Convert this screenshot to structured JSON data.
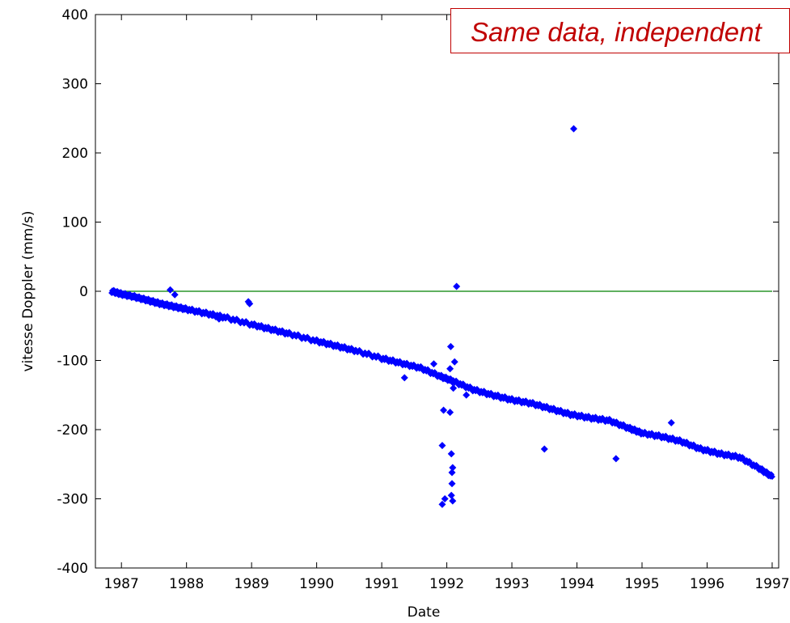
{
  "chart_data": {
    "type": "scatter",
    "title": "",
    "xlabel": "Date",
    "ylabel": "vitesse Doppler (mm/s)",
    "xlim": [
      1986.6,
      1997.1
    ],
    "ylim": [
      -400,
      400
    ],
    "xticks": [
      "1987",
      "1988",
      "1989",
      "1990",
      "1991",
      "1992",
      "1993",
      "1994",
      "1995",
      "1996",
      "1997"
    ],
    "yticks": [
      "400",
      "300",
      "200",
      "100",
      "0",
      "-100",
      "-200",
      "-300",
      "-400"
    ],
    "grid": false,
    "point_color": "#0000ff",
    "reference_line": {
      "x": [
        1986.85,
        1997.0
      ],
      "y": [
        0,
        0
      ],
      "color": "#008000"
    },
    "trend": [
      [
        1986.85,
        0
      ],
      [
        1987.0,
        -4
      ],
      [
        1987.2,
        -8
      ],
      [
        1987.4,
        -13
      ],
      [
        1987.6,
        -18
      ],
      [
        1987.8,
        -22
      ],
      [
        1988.0,
        -26
      ],
      [
        1988.3,
        -32
      ],
      [
        1988.6,
        -38
      ],
      [
        1989.0,
        -48
      ],
      [
        1989.3,
        -55
      ],
      [
        1989.6,
        -62
      ],
      [
        1990.0,
        -72
      ],
      [
        1990.3,
        -79
      ],
      [
        1990.6,
        -86
      ],
      [
        1991.0,
        -97
      ],
      [
        1991.3,
        -104
      ],
      [
        1991.6,
        -111
      ],
      [
        1991.9,
        -123
      ],
      [
        1992.1,
        -130
      ],
      [
        1992.4,
        -142
      ],
      [
        1992.7,
        -150
      ],
      [
        1993.0,
        -157
      ],
      [
        1993.3,
        -162
      ],
      [
        1993.6,
        -170
      ],
      [
        1993.9,
        -178
      ],
      [
        1994.2,
        -183
      ],
      [
        1994.5,
        -187
      ],
      [
        1994.8,
        -198
      ],
      [
        1995.0,
        -205
      ],
      [
        1995.3,
        -210
      ],
      [
        1995.6,
        -217
      ],
      [
        1995.9,
        -228
      ],
      [
        1996.2,
        -235
      ],
      [
        1996.5,
        -240
      ],
      [
        1996.8,
        -256
      ],
      [
        1997.0,
        -268
      ]
    ],
    "outliers": [
      [
        1987.75,
        2
      ],
      [
        1987.82,
        -5
      ],
      [
        1988.95,
        -15
      ],
      [
        1988.97,
        -18
      ],
      [
        1988.4,
        -35
      ],
      [
        1988.5,
        -40
      ],
      [
        1991.35,
        -125
      ],
      [
        1991.8,
        -105
      ],
      [
        1991.93,
        -223
      ],
      [
        1991.95,
        -172
      ],
      [
        1991.97,
        -300
      ],
      [
        1991.93,
        -308
      ],
      [
        1992.05,
        -175
      ],
      [
        1992.07,
        -235
      ],
      [
        1992.08,
        -262
      ],
      [
        1992.09,
        -255
      ],
      [
        1992.08,
        -278
      ],
      [
        1992.07,
        -295
      ],
      [
        1992.09,
        -303
      ],
      [
        1992.06,
        -80
      ],
      [
        1992.12,
        -102
      ],
      [
        1992.05,
        -112
      ],
      [
        1992.1,
        -140
      ],
      [
        1992.15,
        7
      ],
      [
        1992.3,
        -150
      ],
      [
        1993.5,
        -228
      ],
      [
        1993.95,
        235
      ],
      [
        1994.6,
        -242
      ],
      [
        1995.45,
        -190
      ]
    ]
  },
  "callout": {
    "text": "Same data, independent"
  }
}
